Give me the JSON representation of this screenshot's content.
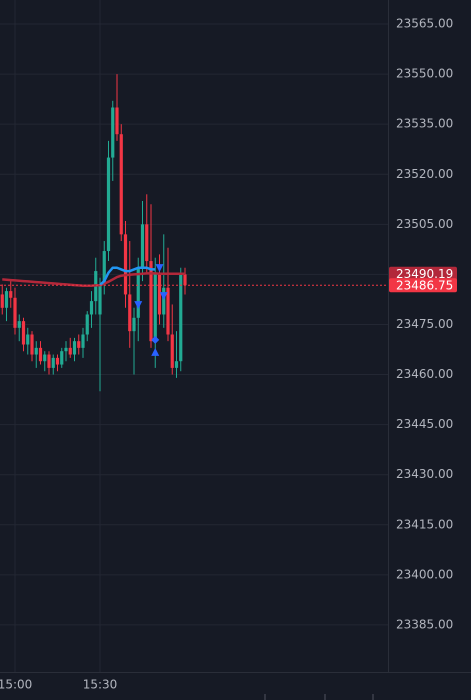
{
  "chart_data": {
    "type": "candlestick",
    "categories": [
      null,
      null,
      null,
      "15:00",
      null,
      null,
      null,
      null,
      null,
      null,
      null,
      null,
      null,
      null,
      null,
      null,
      null,
      null,
      null,
      null,
      null,
      null,
      null,
      "15:30",
      null,
      null,
      null,
      null,
      null,
      null,
      null,
      null,
      null,
      null,
      null,
      null,
      null,
      null,
      null,
      null,
      null,
      null,
      null,
      null
    ],
    "open": [
      23484,
      23480,
      23485,
      23483,
      23474,
      23476,
      23469,
      23472,
      23466,
      23468,
      23464,
      23466,
      23462,
      23465,
      23463,
      23467,
      23468,
      23466,
      23470,
      23468,
      23472,
      23478,
      23482,
      23478,
      23487,
      23497,
      23525,
      23540,
      23532,
      23502,
      23484,
      23473,
      23477,
      23492,
      23505,
      23494,
      23470,
      23490,
      23478,
      23486,
      23472,
      23462,
      23464,
      23490
    ],
    "high": [
      23487,
      23486,
      23488,
      23486,
      23478,
      23477,
      23474,
      23473,
      23470,
      23470,
      23467,
      23467,
      23466,
      23466,
      23468,
      23470,
      23471,
      23471,
      23472,
      23474,
      23479,
      23485,
      23495,
      23489,
      23500,
      23530,
      23542,
      23550,
      23535,
      23506,
      23500,
      23480,
      23495,
      23512,
      23514,
      23511,
      23495,
      23496,
      23502,
      23498,
      23481,
      23473,
      23492,
      23492
    ],
    "low": [
      23478,
      23476,
      23480,
      23472,
      23470,
      23467,
      23466,
      23464,
      23462,
      23463,
      23461,
      23460,
      23460,
      23461,
      23462,
      23464,
      23465,
      23464,
      23466,
      23465,
      23470,
      23474,
      23478,
      23455,
      23484,
      23494,
      23518,
      23530,
      23500,
      23480,
      23468,
      23460,
      23470,
      23488,
      23490,
      23468,
      23462,
      23475,
      23474,
      23470,
      23460,
      23459,
      23461,
      23484
    ],
    "close": [
      23480,
      23485,
      23483,
      23474,
      23476,
      23469,
      23472,
      23466,
      23468,
      23464,
      23466,
      23462,
      23465,
      23463,
      23467,
      23468,
      23466,
      23470,
      23468,
      23472,
      23478,
      23482,
      23491,
      23487,
      23497,
      23525,
      23540,
      23532,
      23502,
      23484,
      23473,
      23477,
      23492,
      23505,
      23494,
      23470,
      23490,
      23478,
      23486,
      23472,
      23462,
      23464,
      23490,
      23486.75
    ],
    "up_color": "#22ab94",
    "down_color": "#f23645",
    "overlays": [
      {
        "style": "line",
        "color": "#b2283a",
        "values": [
          23488.5,
          23488.4,
          23488.3,
          23488.2,
          23488.1,
          23488.0,
          23487.9,
          23487.8,
          23487.7,
          23487.6,
          23487.5,
          23487.4,
          23487.3,
          23487.2,
          23487.1,
          23487.0,
          23486.9,
          23486.8,
          23486.7,
          23486.6,
          23486.6,
          23486.6,
          23486.7,
          23486.8,
          23487.2,
          23487.8,
          23488.5,
          23489.2,
          23489.6,
          23489.8,
          23489.9,
          23490.0,
          23490.1,
          23490.2,
          23490.3,
          23490.3,
          23490.3,
          23490.2,
          23490.2,
          23490.2,
          23490.2,
          23490.2,
          23490.2,
          23490.19
        ]
      },
      {
        "style": "line",
        "color": "#2196f3",
        "values": [
          null,
          null,
          null,
          null,
          null,
          null,
          null,
          null,
          null,
          null,
          null,
          null,
          null,
          null,
          null,
          null,
          null,
          null,
          null,
          null,
          null,
          null,
          null,
          23486.8,
          23488,
          23490.5,
          23492,
          23492,
          23491.5,
          23491,
          23491,
          23491.5,
          23492,
          23492,
          23492,
          23491.5,
          23491.5,
          null,
          null,
          null,
          null,
          null,
          null,
          null
        ]
      },
      {
        "style": "triangle-down",
        "color": "#2962ff",
        "values": [
          null,
          null,
          null,
          null,
          null,
          null,
          null,
          null,
          null,
          null,
          null,
          null,
          null,
          null,
          null,
          null,
          null,
          null,
          null,
          null,
          null,
          null,
          null,
          null,
          null,
          null,
          null,
          null,
          null,
          null,
          null,
          null,
          23480.8,
          null,
          null,
          null,
          null,
          23491.9,
          23483.5,
          null,
          null,
          null,
          null,
          null
        ]
      },
      {
        "style": "diamond",
        "color": "#2962ff",
        "values": [
          null,
          null,
          null,
          null,
          null,
          null,
          null,
          null,
          null,
          null,
          null,
          null,
          null,
          null,
          null,
          null,
          null,
          null,
          null,
          null,
          null,
          null,
          null,
          null,
          null,
          null,
          null,
          null,
          null,
          null,
          null,
          null,
          null,
          null,
          null,
          null,
          23470.4,
          null,
          null,
          null,
          null,
          null,
          null,
          null
        ]
      },
      {
        "style": "triangle-up",
        "color": "#2962ff",
        "values": [
          null,
          null,
          null,
          null,
          null,
          null,
          null,
          null,
          null,
          null,
          null,
          null,
          null,
          null,
          null,
          null,
          null,
          null,
          null,
          null,
          null,
          null,
          null,
          null,
          null,
          null,
          null,
          null,
          null,
          null,
          null,
          null,
          null,
          null,
          null,
          null,
          23466.8,
          null,
          null,
          null,
          null,
          null,
          null,
          null
        ]
      }
    ],
    "price_labels": [
      {
        "value": 23490.19,
        "color": "#b2283a"
      },
      {
        "value": 23486.75,
        "color": "#f23645"
      }
    ],
    "ylim": [
      23371.5,
      23572.2
    ],
    "yticks": [
      {
        "value": 23385,
        "label": "23385.00"
      },
      {
        "value": 23400,
        "label": "23400.00"
      },
      {
        "value": 23415,
        "label": "23415.00"
      },
      {
        "value": 23430,
        "label": "23430.00"
      },
      {
        "value": 23445,
        "label": "23445.00"
      },
      {
        "value": 23460,
        "label": "23460.00"
      },
      {
        "value": 23475,
        "label": "23475.00"
      },
      {
        "value": 23490,
        "label": "23490.00"
      },
      {
        "value": 23505,
        "label": "23505.00"
      },
      {
        "value": 23520,
        "label": "23520.00"
      },
      {
        "value": 23535,
        "label": "23535.00"
      },
      {
        "value": 23550,
        "label": "23550.00"
      },
      {
        "value": 23565,
        "label": "23565.00"
      }
    ],
    "grid": true
  }
}
